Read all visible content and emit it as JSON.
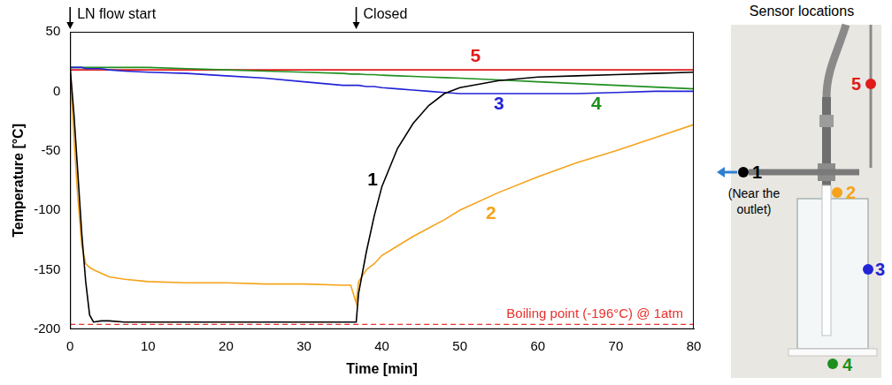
{
  "chart_data": {
    "type": "line",
    "x_label": "Time [min]",
    "y_label": "Temperature [°C]",
    "xlim": [
      0,
      80
    ],
    "xticks": [
      0,
      10,
      20,
      30,
      40,
      50,
      60,
      70,
      80
    ],
    "ylim": [
      -200,
      50
    ],
    "yticks": [
      -200,
      -150,
      -100,
      -50,
      0,
      50
    ],
    "grid": false,
    "x": [
      0,
      0.5,
      1,
      1.5,
      2,
      2.5,
      3,
      4,
      5,
      7,
      10,
      15,
      20,
      25,
      30,
      35,
      36,
      36.7,
      37,
      38,
      39,
      40,
      42,
      44,
      46,
      48,
      50,
      55,
      60,
      65,
      70,
      75,
      80
    ],
    "series": [
      {
        "name": "1",
        "color": "#000000",
        "label_x": 38.8,
        "label_y": -75,
        "values": [
          20,
          -20,
          -70,
          -120,
          -160,
          -188,
          -194,
          -193,
          -193,
          -194,
          -194,
          -194,
          -194,
          -194,
          -194,
          -194,
          -194,
          -194,
          -170,
          -135,
          -105,
          -80,
          -48,
          -27,
          -12,
          -2,
          3,
          9,
          12,
          13,
          14,
          15,
          16
        ]
      },
      {
        "name": "2",
        "color": "#f5a31a",
        "label_x": 54,
        "label_y": -103,
        "values": [
          20,
          -40,
          -90,
          -130,
          -145,
          -148,
          -150,
          -153,
          -156,
          -158,
          -160,
          -161,
          -161,
          -162,
          -162,
          -163,
          -163,
          -178,
          -160,
          -150,
          -145,
          -138,
          -130,
          -122,
          -115,
          -108,
          -100,
          -85,
          -72,
          -60,
          -50,
          -39,
          -28
        ]
      },
      {
        "name": "3",
        "color": "#2323d6",
        "label_x": 55,
        "label_y": -11,
        "values": [
          20,
          20,
          20,
          20,
          19,
          19,
          19,
          19,
          18,
          17,
          16,
          15,
          13,
          11,
          8,
          5,
          5,
          5,
          5,
          4,
          4,
          3,
          2,
          1,
          0,
          -1,
          -2,
          -2,
          -2,
          -2,
          -1,
          0,
          0
        ]
      },
      {
        "name": "4",
        "color": "#1e8f1e",
        "label_x": 67.5,
        "label_y": -11,
        "values": [
          20,
          20,
          20,
          20,
          20,
          20,
          20,
          20,
          20,
          20,
          20,
          19,
          18,
          17,
          16,
          15,
          14.5,
          14.5,
          14.5,
          14,
          14,
          13.5,
          13,
          12.5,
          12,
          11.5,
          11,
          9.5,
          8,
          6.5,
          5,
          3.5,
          2
        ]
      },
      {
        "name": "5",
        "color": "#e01b1b",
        "label_x": 52,
        "label_y": 29,
        "values": [
          18,
          18,
          18,
          18,
          18,
          18,
          18,
          18,
          18,
          18,
          18,
          18,
          18,
          18,
          18,
          18,
          18,
          18,
          18,
          18,
          18,
          18,
          18,
          18,
          18,
          18,
          18,
          18,
          18,
          18,
          18,
          18,
          18
        ]
      }
    ],
    "annotations": [
      {
        "text": "LN flow start",
        "x": 0
      },
      {
        "text": "Closed",
        "x": 36.7
      }
    ],
    "reference_lines": [
      {
        "y": -196,
        "label": "Boiling point (-196°C) @ 1atm",
        "color": "#e8302c",
        "line_style": "dashed"
      }
    ]
  },
  "sensor_panel": {
    "title": "Sensor locations",
    "sensors": [
      {
        "label": "1",
        "color": "#000000",
        "note": "(Near the outlet)"
      },
      {
        "label": "2",
        "color": "#f5a31a"
      },
      {
        "label": "3",
        "color": "#2323d6"
      },
      {
        "label": "4",
        "color": "#1e8f1e"
      },
      {
        "label": "5",
        "color": "#e01b1b"
      }
    ]
  }
}
